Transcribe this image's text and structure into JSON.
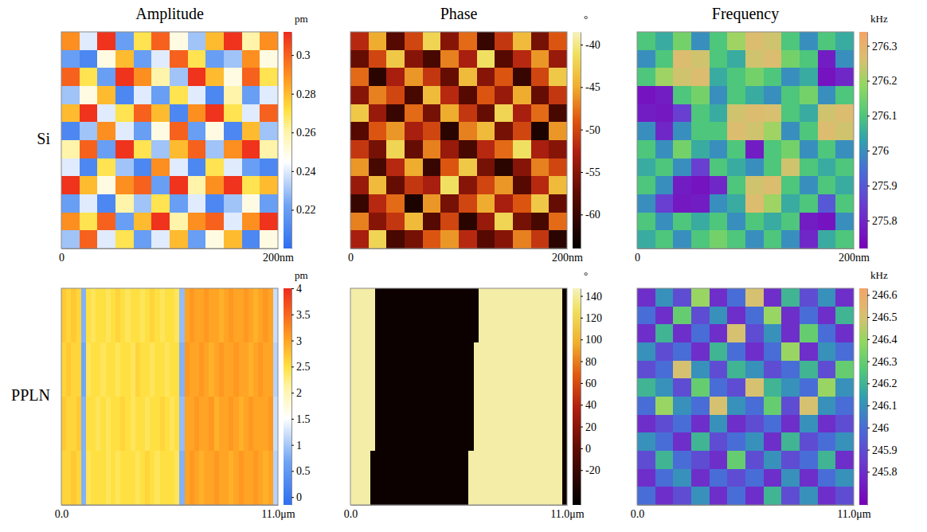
{
  "chart_data": [
    {
      "type": "heatmap",
      "title": "Amplitude",
      "ylabel": "Si",
      "xlim": [
        0,
        200
      ],
      "xticks": [
        0,
        {
          "value": 200,
          "label": "200nm"
        }
      ],
      "colorbar_label": "pm",
      "colorbar_range": [
        0.2,
        0.312
      ],
      "colorbar_ticks": [
        0.22,
        0.24,
        0.26,
        0.28,
        0.3
      ],
      "cells": [
        [
          0.29,
          0.24,
          0.31,
          0.22,
          0.27,
          0.3,
          0.25,
          0.23,
          0.28,
          0.31,
          0.26,
          0.29
        ],
        [
          0.22,
          0.21,
          0.25,
          0.28,
          0.22,
          0.24,
          0.3,
          0.27,
          0.22,
          0.23,
          0.29,
          0.25
        ],
        [
          0.3,
          0.27,
          0.22,
          0.31,
          0.29,
          0.26,
          0.23,
          0.31,
          0.28,
          0.25,
          0.3,
          0.27
        ],
        [
          0.23,
          0.25,
          0.28,
          0.21,
          0.24,
          0.22,
          0.27,
          0.24,
          0.21,
          0.26,
          0.22,
          0.24
        ],
        [
          0.28,
          0.31,
          0.24,
          0.27,
          0.3,
          0.28,
          0.21,
          0.29,
          0.31,
          0.27,
          0.24,
          0.3
        ],
        [
          0.21,
          0.23,
          0.29,
          0.24,
          0.22,
          0.25,
          0.3,
          0.22,
          0.25,
          0.21,
          0.28,
          0.23
        ],
        [
          0.26,
          0.3,
          0.22,
          0.31,
          0.27,
          0.23,
          0.28,
          0.3,
          0.23,
          0.29,
          0.31,
          0.26
        ],
        [
          0.24,
          0.21,
          0.27,
          0.23,
          0.21,
          0.29,
          0.24,
          0.21,
          0.27,
          0.24,
          0.22,
          0.21
        ],
        [
          0.31,
          0.28,
          0.25,
          0.29,
          0.3,
          0.22,
          0.31,
          0.26,
          0.29,
          0.31,
          0.27,
          0.28
        ],
        [
          0.22,
          0.24,
          0.21,
          0.26,
          0.23,
          0.27,
          0.22,
          0.24,
          0.21,
          0.23,
          0.25,
          0.22
        ],
        [
          0.29,
          0.27,
          0.3,
          0.22,
          0.28,
          0.31,
          0.26,
          0.29,
          0.3,
          0.24,
          0.29,
          0.31
        ],
        [
          0.23,
          0.3,
          0.24,
          0.27,
          0.22,
          0.24,
          0.28,
          0.22,
          0.25,
          0.28,
          0.21,
          0.25
        ]
      ]
    },
    {
      "type": "heatmap",
      "title": "Phase",
      "xlim": [
        0,
        200
      ],
      "xticks": [
        0,
        {
          "value": 200,
          "label": "200nm"
        }
      ],
      "colorbar_label": "°",
      "colorbar_range": [
        -64,
        -38.5
      ],
      "colorbar_ticks": [
        -60,
        -55,
        -50,
        -45,
        -40
      ],
      "cells": [
        [
          -52,
          -45,
          -58,
          -50,
          -42,
          -55,
          -48,
          -60,
          -51,
          -44,
          -56,
          -49
        ],
        [
          -57,
          -50,
          -43,
          -55,
          -59,
          -47,
          -53,
          -41,
          -58,
          -52,
          -46,
          -54
        ],
        [
          -48,
          -61,
          -53,
          -46,
          -51,
          -57,
          -44,
          -55,
          -49,
          -60,
          -50,
          -43
        ],
        [
          -55,
          -47,
          -50,
          -59,
          -44,
          -52,
          -58,
          -49,
          -54,
          -45,
          -57,
          -51
        ],
        [
          -43,
          -54,
          -60,
          -48,
          -56,
          -45,
          -51,
          -57,
          -42,
          -53,
          -48,
          -59
        ],
        [
          -58,
          -49,
          -46,
          -53,
          -50,
          -61,
          -47,
          -44,
          -56,
          -50,
          -62,
          -46
        ],
        [
          -51,
          -56,
          -42,
          -57,
          -47,
          -54,
          -59,
          -52,
          -48,
          -41,
          -53,
          -55
        ],
        [
          -46,
          -59,
          -52,
          -45,
          -60,
          -49,
          -43,
          -56,
          -61,
          -55,
          -47,
          -50
        ],
        [
          -54,
          -44,
          -57,
          -51,
          -53,
          -41,
          -55,
          -50,
          -46,
          -58,
          -52,
          -44
        ],
        [
          -60,
          -52,
          -48,
          -62,
          -46,
          -56,
          -50,
          -45,
          -53,
          -49,
          -43,
          -57
        ],
        [
          -47,
          -55,
          -51,
          -44,
          -58,
          -50,
          -61,
          -54,
          -42,
          -56,
          -59,
          -48
        ],
        [
          -53,
          -42,
          -59,
          -56,
          -49,
          -46,
          -52,
          -58,
          -55,
          -47,
          -51,
          -61
        ]
      ]
    },
    {
      "type": "heatmap",
      "title": "Frequency",
      "xlim": [
        0,
        200
      ],
      "xticks": [
        0,
        {
          "value": 200,
          "label": "200nm"
        }
      ],
      "colorbar_label": "kHz",
      "colorbar_range": [
        275.72,
        276.34
      ],
      "colorbar_ticks": [
        275.8,
        275.9,
        276,
        276.1,
        276.2,
        276.3
      ],
      "cells": [
        [
          276.1,
          276.05,
          276.15,
          276.0,
          276.1,
          276.2,
          276.27,
          276.25,
          276.1,
          276.0,
          276.1,
          276.05
        ],
        [
          276.0,
          276.1,
          276.27,
          276.25,
          276.1,
          276.05,
          276.25,
          276.27,
          276.15,
          276.1,
          275.78,
          276.0
        ],
        [
          276.1,
          276.2,
          276.25,
          276.27,
          276.05,
          276.1,
          276.15,
          276.1,
          276.0,
          276.05,
          275.76,
          275.8
        ],
        [
          275.76,
          275.78,
          276.1,
          276.15,
          276.0,
          276.1,
          276.05,
          276.0,
          276.1,
          276.15,
          276.0,
          276.1
        ],
        [
          275.78,
          275.77,
          275.85,
          276.1,
          276.05,
          276.25,
          276.27,
          276.26,
          276.1,
          276.05,
          276.25,
          276.27
        ],
        [
          276.0,
          275.8,
          276.0,
          276.1,
          276.1,
          276.27,
          276.25,
          276.2,
          276.0,
          276.1,
          276.27,
          276.25
        ],
        [
          276.1,
          276.0,
          276.15,
          276.05,
          276.0,
          276.1,
          275.78,
          276.1,
          276.15,
          276.0,
          276.1,
          276.0
        ],
        [
          276.05,
          276.1,
          276.0,
          275.85,
          276.1,
          276.05,
          276.0,
          276.1,
          276.25,
          276.1,
          276.05,
          276.1
        ],
        [
          276.1,
          276.0,
          275.78,
          275.76,
          275.8,
          276.1,
          276.25,
          276.27,
          276.1,
          276.0,
          276.1,
          276.05
        ],
        [
          276.0,
          275.85,
          275.77,
          275.78,
          276.0,
          276.05,
          276.27,
          276.2,
          276.05,
          276.1,
          275.9,
          276.1
        ],
        [
          276.1,
          276.0,
          276.1,
          276.05,
          276.1,
          276.0,
          276.1,
          276.05,
          276.1,
          275.78,
          275.76,
          276.0
        ],
        [
          276.05,
          276.1,
          276.0,
          276.1,
          276.15,
          276.1,
          276.0,
          276.1,
          276.0,
          275.8,
          276.05,
          276.1
        ]
      ]
    },
    {
      "type": "heatmap",
      "ylabel": "PPLN",
      "xlim": [
        0,
        11
      ],
      "xticks": [
        {
          "value": 0,
          "label": "0.0"
        },
        {
          "value": 11,
          "label": "11.0μm"
        }
      ],
      "colorbar_label": "pm",
      "colorbar_range": [
        -0.15,
        4
      ],
      "colorbar_ticks": [
        0,
        0.5,
        1,
        1.5,
        2,
        2.5,
        3,
        3.5,
        4
      ],
      "cells": [
        [
          2.7,
          2.6,
          2.7,
          2.6,
          0.8,
          2.5,
          2.4,
          2.5,
          2.5,
          2.4,
          2.5,
          2.6,
          2.5,
          2.4,
          2.5,
          2.5,
          2.4,
          2.5,
          2.6,
          2.5,
          2.4,
          2.5,
          2.5,
          2.4,
          0.9,
          3.0,
          3.1,
          3.0,
          3.0,
          3.1,
          3.0,
          3.0,
          2.9,
          3.0,
          3.1,
          3.0,
          3.0,
          3.1,
          3.0,
          2.9,
          3.0,
          3.1,
          3.0,
          1.2
        ],
        [
          2.6,
          2.7,
          2.6,
          2.6,
          0.7,
          2.4,
          2.5,
          2.5,
          2.4,
          2.5,
          2.5,
          2.4,
          2.5,
          2.5,
          2.4,
          2.6,
          2.5,
          2.5,
          2.4,
          2.5,
          2.5,
          2.4,
          2.5,
          2.5,
          0.8,
          3.1,
          3.0,
          3.0,
          3.1,
          3.0,
          2.9,
          3.0,
          3.1,
          3.0,
          3.0,
          3.1,
          3.0,
          3.0,
          2.9,
          3.0,
          3.1,
          3.0,
          3.0,
          1.1
        ],
        [
          2.7,
          2.6,
          2.6,
          2.7,
          0.8,
          2.5,
          2.5,
          2.4,
          2.5,
          2.4,
          2.5,
          2.5,
          2.6,
          2.5,
          2.4,
          2.5,
          2.5,
          2.4,
          2.5,
          2.5,
          2.6,
          2.5,
          2.4,
          2.5,
          0.9,
          3.0,
          3.0,
          3.1,
          3.0,
          3.0,
          3.1,
          2.9,
          3.0,
          3.0,
          3.1,
          3.0,
          2.9,
          3.0,
          3.1,
          3.0,
          3.0,
          3.0,
          3.1,
          1.2
        ],
        [
          2.6,
          2.6,
          2.7,
          2.6,
          0.8,
          2.4,
          2.5,
          2.5,
          2.5,
          2.4,
          2.5,
          2.4,
          2.5,
          2.5,
          2.5,
          2.4,
          2.5,
          2.6,
          2.5,
          2.4,
          2.5,
          2.5,
          2.5,
          2.4,
          0.8,
          3.0,
          3.1,
          3.0,
          2.9,
          3.0,
          3.0,
          3.1,
          3.0,
          3.0,
          2.9,
          3.0,
          3.1,
          3.0,
          3.0,
          3.1,
          3.0,
          2.9,
          3.0,
          1.1
        ]
      ]
    },
    {
      "type": "heatmap",
      "xlim": [
        0,
        11
      ],
      "xticks": [
        {
          "value": 0,
          "label": "0.0"
        },
        {
          "value": 11,
          "label": "11.0μm"
        }
      ],
      "colorbar_label": "°",
      "colorbar_range": [
        -52,
        147
      ],
      "colorbar_ticks": [
        -20,
        0,
        20,
        40,
        60,
        80,
        100,
        120,
        140
      ],
      "cells": [
        [
          142,
          142,
          142,
          142,
          142,
          -45,
          -45,
          -45,
          -45,
          -45,
          -45,
          -45,
          -45,
          -45,
          -45,
          -45,
          -45,
          -45,
          -45,
          -45,
          -45,
          -45,
          -45,
          -45,
          -45,
          -45,
          142,
          142,
          142,
          142,
          142,
          142,
          142,
          142,
          142,
          142,
          142,
          142,
          142,
          142,
          142,
          142,
          142,
          -45
        ],
        [
          142,
          142,
          142,
          142,
          142,
          -45,
          -45,
          -45,
          -45,
          -45,
          -45,
          -45,
          -45,
          -45,
          -45,
          -45,
          -45,
          -45,
          -45,
          -45,
          -45,
          -45,
          -45,
          -45,
          -45,
          142,
          142,
          142,
          142,
          142,
          142,
          142,
          142,
          142,
          142,
          142,
          142,
          142,
          142,
          142,
          142,
          142,
          142,
          -45
        ],
        [
          142,
          142,
          142,
          142,
          142,
          -45,
          -45,
          -45,
          -45,
          -45,
          -45,
          -45,
          -45,
          -45,
          -45,
          -45,
          -45,
          -45,
          -45,
          -45,
          -45,
          -45,
          -45,
          -45,
          -45,
          142,
          142,
          142,
          142,
          142,
          142,
          142,
          142,
          142,
          142,
          142,
          142,
          142,
          142,
          142,
          142,
          142,
          142,
          -45
        ],
        [
          142,
          142,
          142,
          142,
          -45,
          -45,
          -45,
          -45,
          -45,
          -45,
          -45,
          -45,
          -45,
          -45,
          -45,
          -45,
          -45,
          -45,
          -45,
          -45,
          -45,
          -45,
          -45,
          -45,
          142,
          142,
          142,
          142,
          142,
          142,
          142,
          142,
          142,
          142,
          142,
          142,
          142,
          142,
          142,
          142,
          142,
          142,
          142,
          -45
        ]
      ]
    },
    {
      "type": "heatmap",
      "xlim": [
        0,
        11
      ],
      "xticks": [
        {
          "value": 0,
          "label": "0.0"
        },
        {
          "value": 11,
          "label": "11.0μm"
        }
      ],
      "colorbar_label": "kHz",
      "colorbar_range": [
        245.65,
        246.63
      ],
      "colorbar_ticks": [
        245.8,
        245.9,
        246,
        246.1,
        246.2,
        246.3,
        246.4,
        246.5,
        246.6
      ],
      "cells": [
        [
          245.8,
          246.1,
          245.9,
          246.4,
          245.8,
          246.0,
          246.5,
          245.8,
          246.2,
          245.9,
          246.1,
          245.8
        ],
        [
          246.0,
          245.8,
          246.3,
          245.9,
          246.1,
          245.8,
          246.0,
          246.4,
          245.8,
          246.0,
          245.8,
          246.2
        ],
        [
          245.8,
          246.2,
          245.8,
          246.0,
          245.8,
          246.5,
          245.9,
          246.1,
          245.8,
          246.3,
          246.0,
          245.8
        ],
        [
          246.1,
          245.9,
          246.0,
          245.8,
          246.2,
          246.0,
          245.8,
          246.0,
          246.4,
          245.8,
          246.1,
          246.0
        ],
        [
          245.9,
          246.0,
          246.5,
          246.1,
          245.9,
          246.2,
          246.1,
          245.9,
          246.0,
          246.2,
          245.9,
          246.3
        ],
        [
          246.2,
          246.1,
          245.9,
          246.3,
          246.0,
          245.9,
          246.5,
          246.2,
          246.1,
          246.0,
          246.4,
          246.1
        ],
        [
          246.0,
          246.4,
          246.1,
          246.0,
          246.5,
          246.1,
          246.0,
          246.3,
          245.9,
          246.5,
          246.1,
          246.0
        ],
        [
          245.8,
          245.9,
          246.0,
          245.8,
          246.1,
          245.8,
          245.9,
          246.0,
          245.8,
          246.1,
          245.8,
          245.9
        ],
        [
          246.1,
          246.0,
          245.8,
          246.2,
          245.9,
          246.0,
          246.1,
          245.8,
          246.2,
          245.9,
          246.0,
          246.1
        ],
        [
          245.9,
          246.2,
          246.0,
          245.9,
          245.8,
          246.3,
          245.9,
          246.1,
          245.9,
          246.0,
          246.2,
          245.8
        ],
        [
          245.8,
          246.0,
          246.1,
          245.8,
          246.0,
          245.9,
          246.0,
          245.8,
          246.1,
          245.8,
          246.0,
          246.1
        ],
        [
          246.0,
          245.8,
          245.9,
          246.1,
          245.8,
          246.0,
          245.8,
          246.2,
          245.9,
          246.1,
          245.8,
          245.9
        ]
      ]
    }
  ]
}
